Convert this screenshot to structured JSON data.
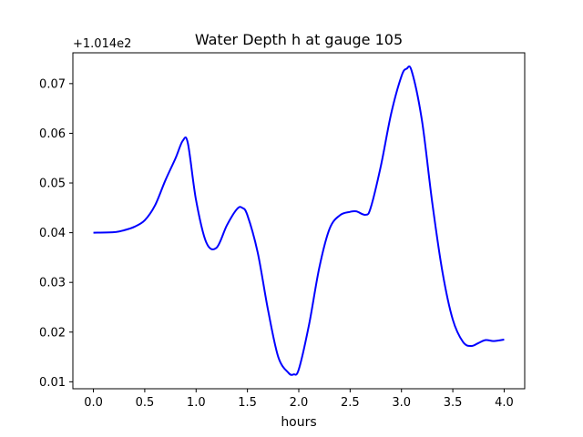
{
  "chart_data": {
    "type": "line",
    "title": "Water Depth h at gauge 105",
    "xlabel": "hours",
    "ylabel": "",
    "offset_label": "+1.014e2",
    "xlim": [
      -0.2,
      4.2
    ],
    "ylim": [
      0.0086,
      0.0762
    ],
    "x_ticks": [
      0.0,
      0.5,
      1.0,
      1.5,
      2.0,
      2.5,
      3.0,
      3.5,
      4.0
    ],
    "x_tick_labels": [
      "0.0",
      "0.5",
      "1.0",
      "1.5",
      "2.0",
      "2.5",
      "3.0",
      "3.5",
      "4.0"
    ],
    "y_ticks": [
      0.01,
      0.02,
      0.03,
      0.04,
      0.05,
      0.06,
      0.07
    ],
    "y_tick_labels": [
      "0.01",
      "0.02",
      "0.03",
      "0.04",
      "0.05",
      "0.06",
      "0.07"
    ],
    "grid": false,
    "series": [
      {
        "color": "#0000ff",
        "x": [
          0.0,
          0.2,
          0.3,
          0.4,
          0.5,
          0.6,
          0.7,
          0.8,
          0.87,
          0.92,
          1.0,
          1.1,
          1.2,
          1.3,
          1.4,
          1.45,
          1.5,
          1.6,
          1.7,
          1.8,
          1.9,
          1.95,
          2.0,
          2.1,
          2.2,
          2.3,
          2.4,
          2.5,
          2.56,
          2.65,
          2.7,
          2.8,
          2.9,
          3.0,
          3.05,
          3.1,
          3.2,
          3.3,
          3.4,
          3.5,
          3.6,
          3.68,
          3.75,
          3.82,
          3.9,
          4.0
        ],
        "y": [
          0.04,
          0.0401,
          0.0405,
          0.0412,
          0.0425,
          0.0455,
          0.0505,
          0.055,
          0.0585,
          0.058,
          0.0465,
          0.038,
          0.037,
          0.0415,
          0.0448,
          0.045,
          0.0435,
          0.036,
          0.0245,
          0.015,
          0.0118,
          0.0115,
          0.0125,
          0.0215,
          0.033,
          0.0408,
          0.0435,
          0.0442,
          0.0443,
          0.0436,
          0.045,
          0.0535,
          0.064,
          0.0715,
          0.073,
          0.0725,
          0.0625,
          0.046,
          0.032,
          0.0225,
          0.018,
          0.0172,
          0.0178,
          0.0184,
          0.0182,
          0.0185
        ]
      }
    ]
  }
}
